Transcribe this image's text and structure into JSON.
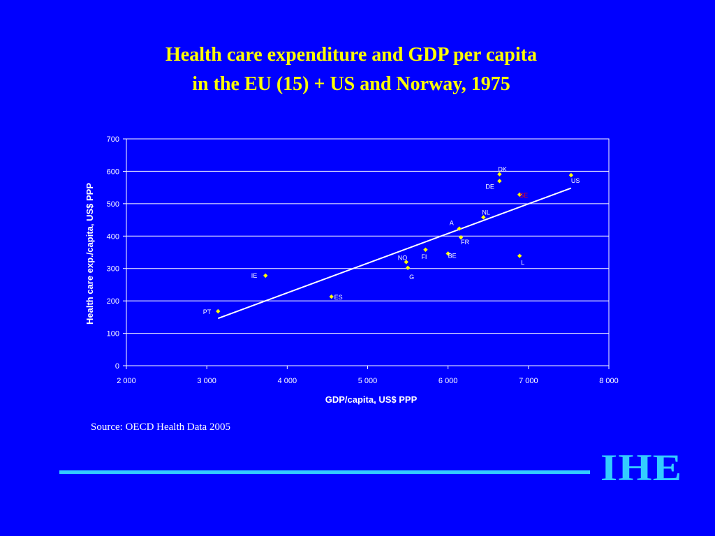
{
  "slide": {
    "title_line1": "Health care expenditure and GDP per capita",
    "title_line2": "in the EU (15) + US and Norway, 1975",
    "source": "Source: OECD Health Data 2005",
    "logo": "IHE"
  },
  "colors": {
    "background": "#0000FF",
    "title": "#FFFF00",
    "accent": "#33CCFF",
    "point": "#FFFF00",
    "highlight_label": "#FF0000"
  },
  "chart_data": {
    "type": "scatter",
    "xlabel": "GDP/capita, US$ PPP",
    "ylabel": "Health care exp./capita, US$ PPP",
    "xlim": [
      2000,
      8000
    ],
    "ylim": [
      0,
      700
    ],
    "x_ticks": [
      2000,
      3000,
      4000,
      5000,
      6000,
      7000,
      8000
    ],
    "x_tick_labels": [
      "2 000",
      "3 000",
      "4 000",
      "5 000",
      "6 000",
      "7 000",
      "8 000"
    ],
    "y_ticks": [
      0,
      100,
      200,
      300,
      400,
      500,
      600,
      700
    ],
    "y_tick_labels": [
      "0",
      "100",
      "200",
      "300",
      "400",
      "500",
      "600",
      "700"
    ],
    "grid": "horizontal",
    "points": [
      {
        "label": "PT",
        "x": 3140,
        "y": 168
      },
      {
        "label": "IE",
        "x": 3730,
        "y": 278
      },
      {
        "label": "ES",
        "x": 4550,
        "y": 213
      },
      {
        "label": "NO",
        "x": 5480,
        "y": 320
      },
      {
        "label": "G",
        "x": 5500,
        "y": 302
      },
      {
        "label": "FI",
        "x": 5720,
        "y": 358
      },
      {
        "label": "BE",
        "x": 6000,
        "y": 346
      },
      {
        "label": "A",
        "x": 6140,
        "y": 423
      },
      {
        "label": "FR",
        "x": 6160,
        "y": 396
      },
      {
        "label": "NL",
        "x": 6440,
        "y": 458
      },
      {
        "label": "DK",
        "x": 6640,
        "y": 591
      },
      {
        "label": "DE",
        "x": 6640,
        "y": 570
      },
      {
        "label": "SE",
        "x": 6890,
        "y": 528,
        "highlight": true
      },
      {
        "label": "L",
        "x": 6890,
        "y": 339
      },
      {
        "label": "US",
        "x": 7530,
        "y": 588
      }
    ],
    "trendline": {
      "x": [
        3140,
        7530
      ],
      "y": [
        146,
        548
      ]
    }
  }
}
